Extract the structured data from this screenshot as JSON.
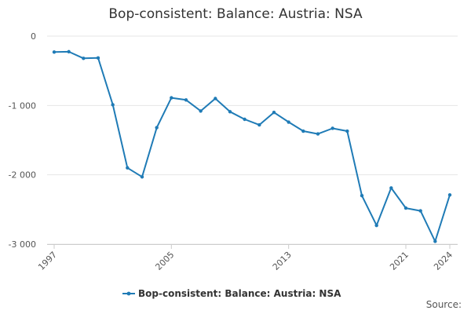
{
  "chart_data": {
    "type": "line",
    "title": "Bop-consistent: Balance: Austria: NSA",
    "xlabel": "",
    "ylabel": "",
    "ylim": [
      -3000,
      0
    ],
    "yticks": [
      0,
      -1000,
      -2000,
      -3000
    ],
    "ytick_labels": [
      "0",
      "-1 000",
      "-2 000",
      "-3 000"
    ],
    "xlim": [
      1997,
      2024
    ],
    "xticks": [
      1997,
      2005,
      2013,
      2021,
      2024
    ],
    "xtick_labels": [
      "1997",
      "2005",
      "2013",
      "2021",
      "2024"
    ],
    "grid": "horizontal",
    "legend_position": "bottom",
    "colors": {
      "series": "#1f7bb6",
      "grid": "#e6e6e6",
      "axis": "#cccccc"
    },
    "series": [
      {
        "name": "Bop-consistent: Balance: Austria: NSA",
        "x": [
          1997.0,
          1998.0,
          1999.0,
          2000.0,
          2001.0,
          2002.0,
          2003.0,
          2004.0,
          2005.0,
          2006.0,
          2007.0,
          2008.0,
          2009.0,
          2010.0,
          2011.0,
          2012.0,
          2013.0,
          2014.0,
          2015.0,
          2016.0,
          2017.0,
          2018.0,
          2019.0,
          2020.0,
          2021.0,
          2022.0,
          2023.0,
          2024.0
        ],
        "values": [
          -230,
          -225,
          -320,
          -315,
          -990,
          -1900,
          -2030,
          -1320,
          -890,
          -920,
          -1080,
          -900,
          -1090,
          -1200,
          -1280,
          -1100,
          -1240,
          -1370,
          -1410,
          -1330,
          -1370,
          -2300,
          -2730,
          -2190,
          -2480,
          -2520,
          -2960,
          -2290
        ]
      }
    ]
  },
  "footer": {
    "source_label": "Source:"
  }
}
